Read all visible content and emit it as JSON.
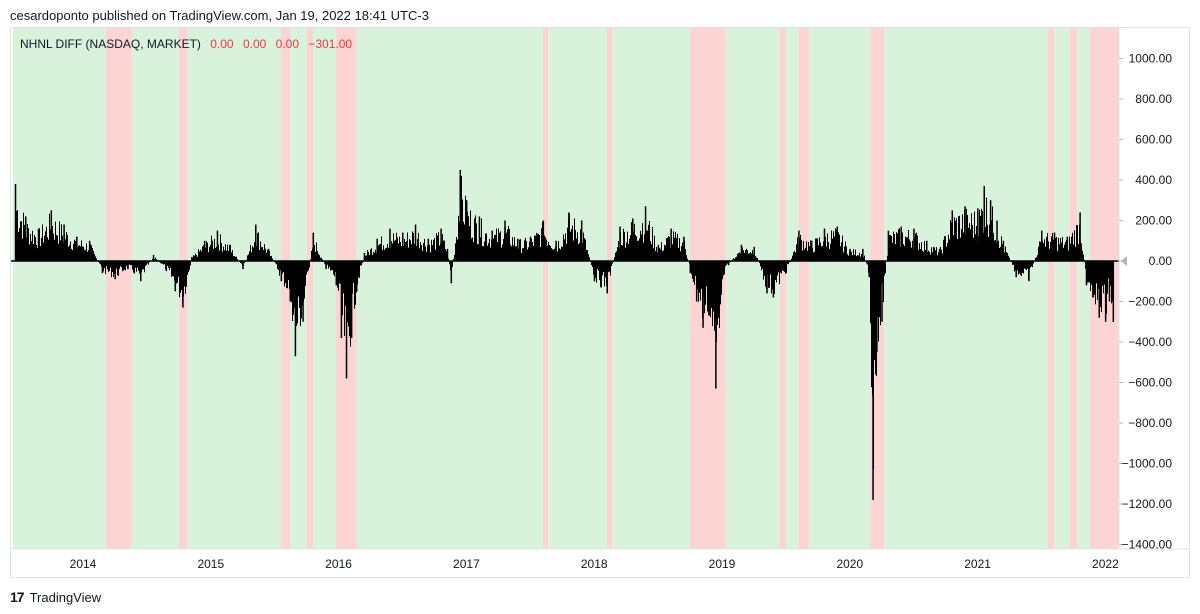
{
  "header": {
    "text": "cesardoponto published on TradingView.com, Jan 19, 2022 18:41 UTC-3"
  },
  "legend": {
    "name": "NHNL DIFF (NASDAQ, MARKET)",
    "values": [
      "0.00",
      "0.00",
      "0.00",
      "−301.00"
    ]
  },
  "footer": {
    "logo_glyph": "17",
    "brand": "TradingView"
  },
  "colors": {
    "bull_background": "#d9f2dc",
    "bear_background": "#fcd4d4",
    "bars": "#000000",
    "legend_values": "#f23645",
    "last_value_marker": "#b2b5be"
  },
  "chart_data": {
    "type": "bar",
    "title": "NHNL DIFF (NASDAQ, MARKET)",
    "xlabel": "",
    "ylabel": "",
    "ylim": [
      -1400,
      1150
    ],
    "xlim": [
      2013.45,
      2022.12
    ],
    "y_ticks": [
      1000,
      800,
      600,
      400,
      200,
      0,
      -200,
      -400,
      -600,
      -800,
      -1000,
      -1200,
      -1400
    ],
    "y_tick_labels": [
      "1000.00",
      "800.00",
      "600.00",
      "400.00",
      "200.00",
      "0.00",
      "−200.00",
      "−400.00",
      "−600.00",
      "−800.00",
      "−1000.00",
      "−1200.00",
      "−1400.00"
    ],
    "x_ticks": [
      2014,
      2015,
      2016,
      2017,
      2018,
      2019,
      2020,
      2021,
      2022
    ],
    "x_tick_labels": [
      "2014",
      "2015",
      "2016",
      "2017",
      "2018",
      "2019",
      "2020",
      "2021",
      "2022"
    ],
    "grid": false,
    "last_value": -301,
    "series": [
      {
        "x": [
          2013.47,
          2013.55,
          2013.65,
          2013.75,
          2013.85,
          2013.95,
          2014.05,
          2014.15,
          2014.25,
          2014.35,
          2014.45,
          2014.55,
          2014.65,
          2014.72,
          2014.78,
          2014.85,
          2014.95,
          2015.05,
          2015.15,
          2015.25,
          2015.35,
          2015.45,
          2015.55,
          2015.62,
          2015.66,
          2015.72,
          2015.8,
          2015.9,
          2015.98,
          2016.02,
          2016.06,
          2016.1,
          2016.14,
          2016.2,
          2016.3,
          2016.4,
          2016.5,
          2016.6,
          2016.7,
          2016.8,
          2016.85,
          2016.88,
          2016.95,
          2017.0,
          2017.1,
          2017.2,
          2017.3,
          2017.4,
          2017.5,
          2017.6,
          2017.7,
          2017.8,
          2017.9,
          2018.0,
          2018.05,
          2018.1,
          2018.2,
          2018.3,
          2018.4,
          2018.5,
          2018.6,
          2018.7,
          2018.75,
          2018.8,
          2018.85,
          2018.9,
          2018.95,
          2019.0,
          2019.05,
          2019.15,
          2019.25,
          2019.35,
          2019.4,
          2019.5,
          2019.6,
          2019.7,
          2019.8,
          2019.9,
          2020.0,
          2020.1,
          2020.15,
          2020.18,
          2020.21,
          2020.25,
          2020.3,
          2020.4,
          2020.5,
          2020.6,
          2020.7,
          2020.8,
          2020.9,
          2021.0,
          2021.05,
          2021.1,
          2021.15,
          2021.2,
          2021.3,
          2021.4,
          2021.5,
          2021.6,
          2021.7,
          2021.8,
          2021.85,
          2021.9,
          2021.95,
          2022.0,
          2022.03,
          2022.06
        ],
        "values": [
          380,
          220,
          160,
          250,
          180,
          120,
          100,
          -60,
          -90,
          -40,
          -100,
          30,
          -50,
          -150,
          -230,
          20,
          100,
          150,
          80,
          -40,
          180,
          60,
          -100,
          -200,
          -470,
          -300,
          140,
          -40,
          -120,
          -380,
          -580,
          -380,
          -150,
          40,
          110,
          160,
          140,
          180,
          110,
          160,
          60,
          -110,
          450,
          300,
          220,
          150,
          200,
          110,
          120,
          200,
          100,
          240,
          200,
          -100,
          -130,
          -160,
          170,
          210,
          270,
          80,
          160,
          120,
          -60,
          -200,
          -330,
          -270,
          -630,
          -90,
          -20,
          80,
          70,
          -160,
          -180,
          -60,
          150,
          100,
          160,
          170,
          60,
          60,
          -80,
          -1180,
          -450,
          -300,
          150,
          170,
          160,
          100,
          60,
          250,
          270,
          260,
          370,
          300,
          200,
          100,
          -80,
          -100,
          150,
          140,
          120,
          240,
          -120,
          -180,
          -280,
          -300,
          -200,
          -301
        ]
      }
    ],
    "background_regions": [
      {
        "start": 2013.45,
        "end": 2014.18,
        "state": "bull"
      },
      {
        "start": 2014.18,
        "end": 2014.38,
        "state": "bear"
      },
      {
        "start": 2014.38,
        "end": 2014.75,
        "state": "bull"
      },
      {
        "start": 2014.75,
        "end": 2014.82,
        "state": "bear"
      },
      {
        "start": 2014.82,
        "end": 2015.55,
        "state": "bull"
      },
      {
        "start": 2015.55,
        "end": 2015.62,
        "state": "bear"
      },
      {
        "start": 2015.62,
        "end": 2015.75,
        "state": "bull"
      },
      {
        "start": 2015.75,
        "end": 2015.8,
        "state": "bear"
      },
      {
        "start": 2015.8,
        "end": 2015.98,
        "state": "bull"
      },
      {
        "start": 2015.98,
        "end": 2016.14,
        "state": "bear"
      },
      {
        "start": 2016.14,
        "end": 2017.6,
        "state": "bull"
      },
      {
        "start": 2017.6,
        "end": 2017.64,
        "state": "bear"
      },
      {
        "start": 2017.64,
        "end": 2018.1,
        "state": "bull"
      },
      {
        "start": 2018.1,
        "end": 2018.14,
        "state": "bear"
      },
      {
        "start": 2018.14,
        "end": 2018.75,
        "state": "bull"
      },
      {
        "start": 2018.75,
        "end": 2019.03,
        "state": "bear"
      },
      {
        "start": 2019.03,
        "end": 2019.45,
        "state": "bull"
      },
      {
        "start": 2019.45,
        "end": 2019.5,
        "state": "bear"
      },
      {
        "start": 2019.5,
        "end": 2019.6,
        "state": "bull"
      },
      {
        "start": 2019.6,
        "end": 2019.68,
        "state": "bear"
      },
      {
        "start": 2019.68,
        "end": 2020.16,
        "state": "bull"
      },
      {
        "start": 2020.16,
        "end": 2020.27,
        "state": "bear"
      },
      {
        "start": 2020.27,
        "end": 2021.55,
        "state": "bull"
      },
      {
        "start": 2021.55,
        "end": 2021.6,
        "state": "bear"
      },
      {
        "start": 2021.6,
        "end": 2021.72,
        "state": "bull"
      },
      {
        "start": 2021.72,
        "end": 2021.78,
        "state": "bear"
      },
      {
        "start": 2021.78,
        "end": 2021.88,
        "state": "bull"
      },
      {
        "start": 2021.88,
        "end": 2022.12,
        "state": "bear"
      }
    ]
  }
}
